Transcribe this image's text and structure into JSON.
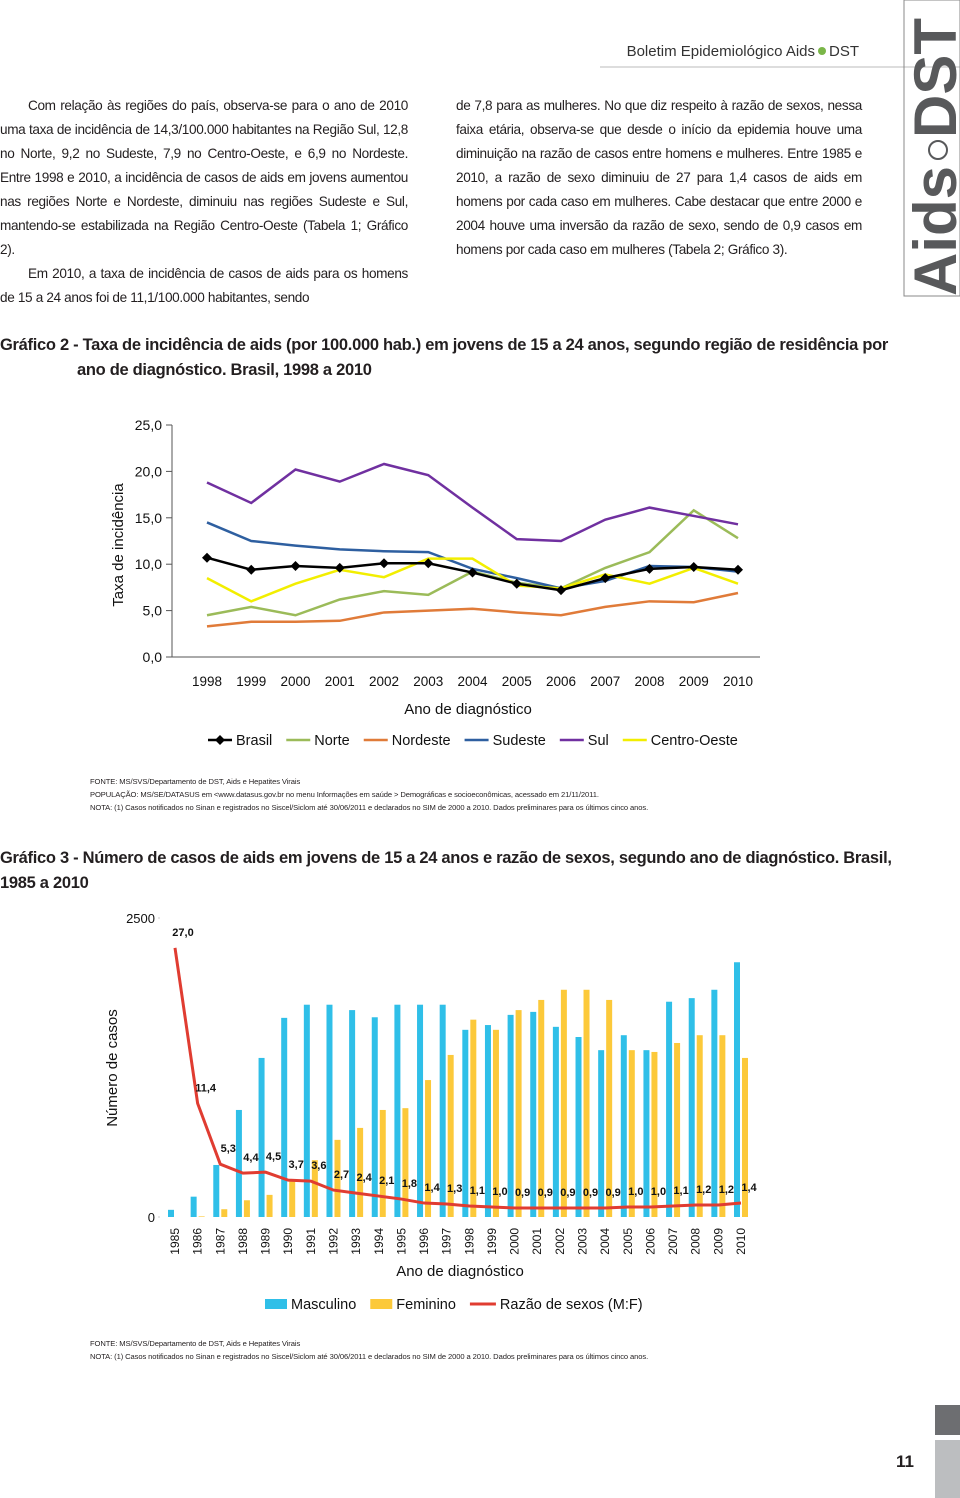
{
  "header": {
    "title": "Boletim Epidemiológico Aids",
    "tag": "DST"
  },
  "side_brand": {
    "left": "Aids",
    "right": "DST"
  },
  "left_column": [
    "Com relação às regiões do país, observa-se para o ano de 2010 uma taxa de incidência de 14,3/100.000 habitantes na Região Sul, 12,8 no Norte, 9,2 no Sudeste, 7,9 no Centro-Oeste, e 6,9 no Nordeste. Entre 1998 e 2010, a incidência de casos de aids em jovens aumentou nas regiões Norte e Nordeste, diminuiu nas regiões Sudeste e Sul, mantendo-se estabilizada na Região Centro-Oeste (Tabela 1; Gráfico 2).",
    "Em 2010, a taxa de incidência de casos de aids para os homens de 15 a 24 anos foi de 11,1/100.000 habitantes, sendo"
  ],
  "right_column": [
    "de 7,8 para as mulheres. No que diz respeito à razão de sexos, nessa faixa etária, observa-se que desde o início da epidemia houve uma diminuição na razão de casos entre homens e mulheres. Entre 1985 e 2010, a razão de sexo diminuiu de 27 para 1,4 casos de aids em homens por cada caso em mulheres. Cabe destacar que entre 2000 e 2004 houve uma inversão da razão de sexo, sendo de 0,9 casos em homens por cada caso em mulheres (Tabela 2; Gráfico 3)."
  ],
  "chart_data": [
    {
      "type": "line",
      "title": "Gráfico 2 - Taxa de incidência de aids (por 100.000 hab.) em jovens de 15 a 24 anos, segundo região de residência por ano de diagnóstico. Brasil, 1998 a 2010",
      "x_label": "Ano de diagnóstico",
      "y_label": "Taxa de incidência",
      "categories": [
        "1998",
        "1999",
        "2000",
        "2001",
        "2002",
        "2003",
        "2004",
        "2005",
        "2006",
        "2007",
        "2008",
        "2009",
        "2010"
      ],
      "ylim": [
        0,
        25
      ],
      "yticks": [
        {
          "value": 0,
          "label": "0,0"
        },
        {
          "value": 5,
          "label": "5,0"
        },
        {
          "value": 10,
          "label": "10,0"
        },
        {
          "value": 15,
          "label": "15,0"
        },
        {
          "value": 20,
          "label": "20,0"
        },
        {
          "value": 25,
          "label": "25,0"
        }
      ],
      "legend": "bottom",
      "series": [
        {
          "name": "Brasil",
          "color": "#000000",
          "marker": "diamond",
          "values": [
            10.7,
            9.4,
            9.8,
            9.6,
            10.1,
            10.1,
            9.1,
            7.9,
            7.2,
            8.5,
            9.5,
            9.7,
            9.4
          ]
        },
        {
          "name": "Norte",
          "color": "#9bbb59",
          "values": [
            4.5,
            5.4,
            4.5,
            6.2,
            7.1,
            6.7,
            9.2,
            8.0,
            7.4,
            9.6,
            11.3,
            15.8,
            12.8
          ]
        },
        {
          "name": "Nordeste",
          "color": "#e07b39",
          "values": [
            3.3,
            3.8,
            3.8,
            3.9,
            4.8,
            5.0,
            5.2,
            4.8,
            4.5,
            5.4,
            6.0,
            5.9,
            6.9
          ]
        },
        {
          "name": "Sudeste",
          "color": "#2e5fa0",
          "values": [
            14.5,
            12.5,
            12.0,
            11.6,
            11.4,
            11.3,
            9.5,
            8.5,
            7.4,
            8.2,
            9.8,
            9.7,
            9.2
          ]
        },
        {
          "name": "Sul",
          "color": "#7030a0",
          "values": [
            18.8,
            16.6,
            20.2,
            18.9,
            20.8,
            19.6,
            16.1,
            12.7,
            12.5,
            14.8,
            16.1,
            15.2,
            14.3
          ]
        },
        {
          "name": "Centro-Oeste",
          "color": "#f2ee00",
          "values": [
            8.5,
            6.0,
            7.9,
            9.4,
            8.6,
            10.6,
            10.6,
            7.7,
            7.4,
            8.9,
            7.9,
            9.6,
            7.9
          ]
        }
      ],
      "notes": [
        "FONTE: MS/SVS/Departamento de DST, Aids e Hepatites Virais",
        "POPULAÇÃO: MS/SE/DATASUS em <www.datasus.gov.br no menu Informações em saúde > Demográficas e socioeconômicas, acessado em 21/11/2011.",
        "NOTA: (1) Casos notificados no Sinan e registrados no Siscel/Siclom até 30/06/2011 e declarados no SIM de 2000 a 2010. Dados preliminares para os últimos cinco anos."
      ]
    },
    {
      "type": "bar",
      "title": "Gráfico 3 - Número de casos de aids em jovens de 15 a 24 anos e razão de sexos, segundo ano de diagnóstico. Brasil, 1985 a 2010",
      "x_label": "Ano de diagnóstico",
      "y_label": "Número de casos",
      "categories": [
        "1985",
        "1986",
        "1987",
        "1988",
        "1989",
        "1990",
        "1991",
        "1992",
        "1993",
        "1994",
        "1995",
        "1996",
        "1997",
        "1998",
        "1999",
        "2000",
        "2001",
        "2002",
        "2003",
        "2004",
        "2005",
        "2006",
        "2007",
        "2008",
        "2009",
        "2010"
      ],
      "ylim": [
        0,
        2500
      ],
      "yticks": [
        0,
        2500
      ],
      "y2lim": [
        0,
        30
      ],
      "legend": "bottom",
      "series": [
        {
          "name": "Masculino",
          "color": "#2fbfe8",
          "values": [
            60,
            170,
            435,
            895,
            1330,
            1665,
            1775,
            1775,
            1730,
            1670,
            1775,
            1775,
            1775,
            1565,
            1605,
            1690,
            1715,
            1590,
            1505,
            1395,
            1520,
            1395,
            1800,
            1830,
            1900,
            2130
          ]
        },
        {
          "name": "Feminino",
          "color": "#fcc93a",
          "values": [
            0,
            5,
            65,
            140,
            185,
            310,
            475,
            645,
            745,
            895,
            910,
            1145,
            1355,
            1650,
            1565,
            1730,
            1815,
            1900,
            1900,
            1815,
            1395,
            1380,
            1455,
            1520,
            1520,
            1330
          ]
        },
        {
          "name": "Razão de sexos (M:F)",
          "color": "#e03c31",
          "type": "line",
          "axis": "y2",
          "values": [
            27.0,
            11.4,
            5.3,
            4.4,
            4.5,
            3.7,
            3.6,
            2.7,
            2.4,
            2.1,
            1.8,
            1.4,
            1.3,
            1.1,
            1.0,
            0.9,
            0.9,
            0.9,
            0.9,
            0.9,
            1.0,
            1.0,
            1.1,
            1.2,
            1.2,
            1.4
          ],
          "value_labels": [
            "27,0",
            "11,4",
            "5,3",
            "4,4",
            "4,5",
            "3,7",
            "3,6",
            "2,7",
            "2,4",
            "2,1",
            "1,8",
            "1,4",
            "1,3",
            "1,1",
            "1,0",
            "0,9",
            "0,9",
            "0,9",
            "0,9",
            "0,9",
            "1,0",
            "1,0",
            "1,1",
            "1,2",
            "1,2",
            "1,4"
          ]
        }
      ],
      "notes": [
        "FONTE: MS/SVS/Departamento de DST, Aids e Hepatites Virais",
        "NOTA: (1) Casos notificados no Sinan e registrados no Siscel/Siclom até 30/06/2011 e declarados no SIM de 2000 a 2010. Dados preliminares para os últimos cinco anos."
      ]
    }
  ],
  "page_number": "11"
}
